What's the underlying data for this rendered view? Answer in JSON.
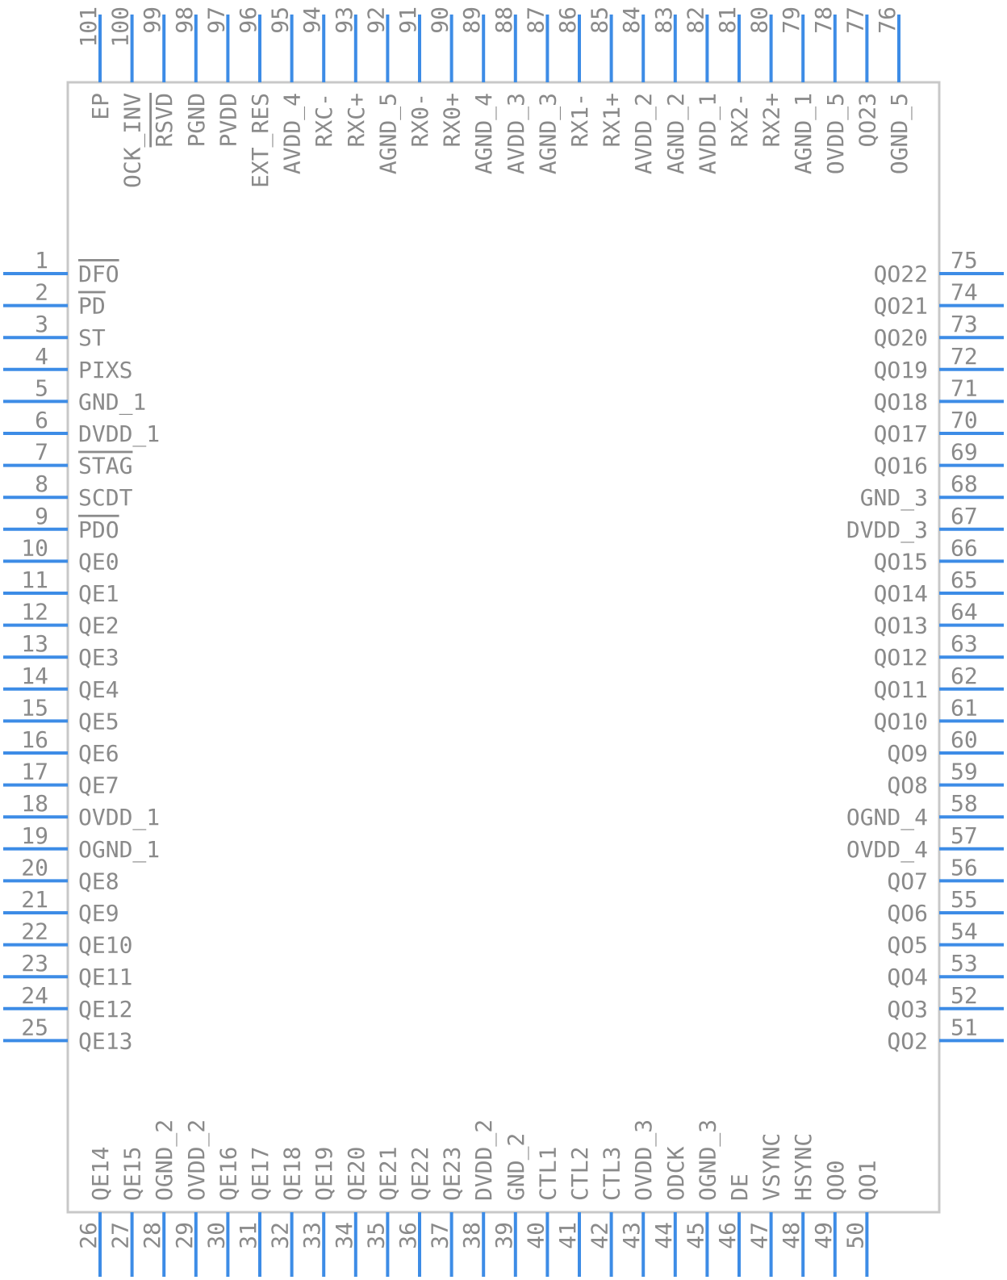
{
  "colors": {
    "body_outline": "#c8c8c8",
    "pin": "#3d8ce6",
    "text": "#8a8a8a"
  },
  "left_pins": [
    {
      "num": "1",
      "name": "DFO",
      "overline": true
    },
    {
      "num": "2",
      "name": "PD",
      "overline": true
    },
    {
      "num": "3",
      "name": "ST"
    },
    {
      "num": "4",
      "name": "PIXS"
    },
    {
      "num": "5",
      "name": "GND_1"
    },
    {
      "num": "6",
      "name": "DVDD_1"
    },
    {
      "num": "7",
      "name": "STAG",
      "overline": true
    },
    {
      "num": "8",
      "name": "SCDT"
    },
    {
      "num": "9",
      "name": "PDO",
      "overline": true
    },
    {
      "num": "10",
      "name": "QE0"
    },
    {
      "num": "11",
      "name": "QE1"
    },
    {
      "num": "12",
      "name": "QE2"
    },
    {
      "num": "13",
      "name": "QE3"
    },
    {
      "num": "14",
      "name": "QE4"
    },
    {
      "num": "15",
      "name": "QE5"
    },
    {
      "num": "16",
      "name": "QE6"
    },
    {
      "num": "17",
      "name": "QE7"
    },
    {
      "num": "18",
      "name": "OVDD_1"
    },
    {
      "num": "19",
      "name": "OGND_1"
    },
    {
      "num": "20",
      "name": "QE8"
    },
    {
      "num": "21",
      "name": "QE9"
    },
    {
      "num": "22",
      "name": "QE10"
    },
    {
      "num": "23",
      "name": "QE11"
    },
    {
      "num": "24",
      "name": "QE12"
    },
    {
      "num": "25",
      "name": "QE13"
    }
  ],
  "right_pins": [
    {
      "num": "75",
      "name": "QO22"
    },
    {
      "num": "74",
      "name": "QO21"
    },
    {
      "num": "73",
      "name": "QO20"
    },
    {
      "num": "72",
      "name": "QO19"
    },
    {
      "num": "71",
      "name": "QO18"
    },
    {
      "num": "70",
      "name": "QO17"
    },
    {
      "num": "69",
      "name": "QO16"
    },
    {
      "num": "68",
      "name": "GND_3"
    },
    {
      "num": "67",
      "name": "DVDD_3"
    },
    {
      "num": "66",
      "name": "QO15"
    },
    {
      "num": "65",
      "name": "QO14"
    },
    {
      "num": "64",
      "name": "QO13"
    },
    {
      "num": "63",
      "name": "QO12"
    },
    {
      "num": "62",
      "name": "QO11"
    },
    {
      "num": "61",
      "name": "QO10"
    },
    {
      "num": "60",
      "name": "QO9"
    },
    {
      "num": "59",
      "name": "QO8"
    },
    {
      "num": "58",
      "name": "OGND_4"
    },
    {
      "num": "57",
      "name": "OVDD_4"
    },
    {
      "num": "56",
      "name": "QO7"
    },
    {
      "num": "55",
      "name": "QO6"
    },
    {
      "num": "54",
      "name": "QO5"
    },
    {
      "num": "53",
      "name": "QO4"
    },
    {
      "num": "52",
      "name": "QO3"
    },
    {
      "num": "51",
      "name": "QO2"
    }
  ],
  "top_pins": [
    {
      "num": "101",
      "name": "EP"
    },
    {
      "num": "100",
      "name": "OCK_INV"
    },
    {
      "num": "99",
      "name": "RSVD",
      "overline": true
    },
    {
      "num": "98",
      "name": "PGND"
    },
    {
      "num": "97",
      "name": "PVDD"
    },
    {
      "num": "96",
      "name": "EXT_RES"
    },
    {
      "num": "95",
      "name": "AVDD_4"
    },
    {
      "num": "94",
      "name": "RXC-"
    },
    {
      "num": "93",
      "name": "RXC+"
    },
    {
      "num": "92",
      "name": "AGND_5"
    },
    {
      "num": "91",
      "name": "RX0-"
    },
    {
      "num": "90",
      "name": "RX0+"
    },
    {
      "num": "89",
      "name": "AGND_4"
    },
    {
      "num": "88",
      "name": "AVDD_3"
    },
    {
      "num": "87",
      "name": "AGND_3"
    },
    {
      "num": "86",
      "name": "RX1-"
    },
    {
      "num": "85",
      "name": "RX1+"
    },
    {
      "num": "84",
      "name": "AVDD_2"
    },
    {
      "num": "83",
      "name": "AGND_2"
    },
    {
      "num": "82",
      "name": "AVDD_1"
    },
    {
      "num": "81",
      "name": "RX2-"
    },
    {
      "num": "80",
      "name": "RX2+"
    },
    {
      "num": "79",
      "name": "AGND_1"
    },
    {
      "num": "78",
      "name": "OVDD_5"
    },
    {
      "num": "77",
      "name": "QO23"
    },
    {
      "num": "76",
      "name": "OGND_5"
    }
  ],
  "bottom_pins": [
    {
      "num": "26",
      "name": "QE14"
    },
    {
      "num": "27",
      "name": "QE15"
    },
    {
      "num": "28",
      "name": "OGND_2"
    },
    {
      "num": "29",
      "name": "OVDD_2"
    },
    {
      "num": "30",
      "name": "QE16"
    },
    {
      "num": "31",
      "name": "QE17"
    },
    {
      "num": "32",
      "name": "QE18"
    },
    {
      "num": "33",
      "name": "QE19"
    },
    {
      "num": "34",
      "name": "QE20"
    },
    {
      "num": "35",
      "name": "QE21"
    },
    {
      "num": "36",
      "name": "QE22"
    },
    {
      "num": "37",
      "name": "QE23"
    },
    {
      "num": "38",
      "name": "DVDD_2"
    },
    {
      "num": "39",
      "name": "GND_2"
    },
    {
      "num": "40",
      "name": "CTL1"
    },
    {
      "num": "41",
      "name": "CTL2"
    },
    {
      "num": "42",
      "name": "CTL3"
    },
    {
      "num": "43",
      "name": "OVDD_3"
    },
    {
      "num": "44",
      "name": "ODCK"
    },
    {
      "num": "45",
      "name": "OGND_3"
    },
    {
      "num": "46",
      "name": "DE"
    },
    {
      "num": "47",
      "name": "VSYNC"
    },
    {
      "num": "48",
      "name": "HSYNC"
    },
    {
      "num": "49",
      "name": "QO0"
    },
    {
      "num": "50",
      "name": "QO1"
    }
  ]
}
